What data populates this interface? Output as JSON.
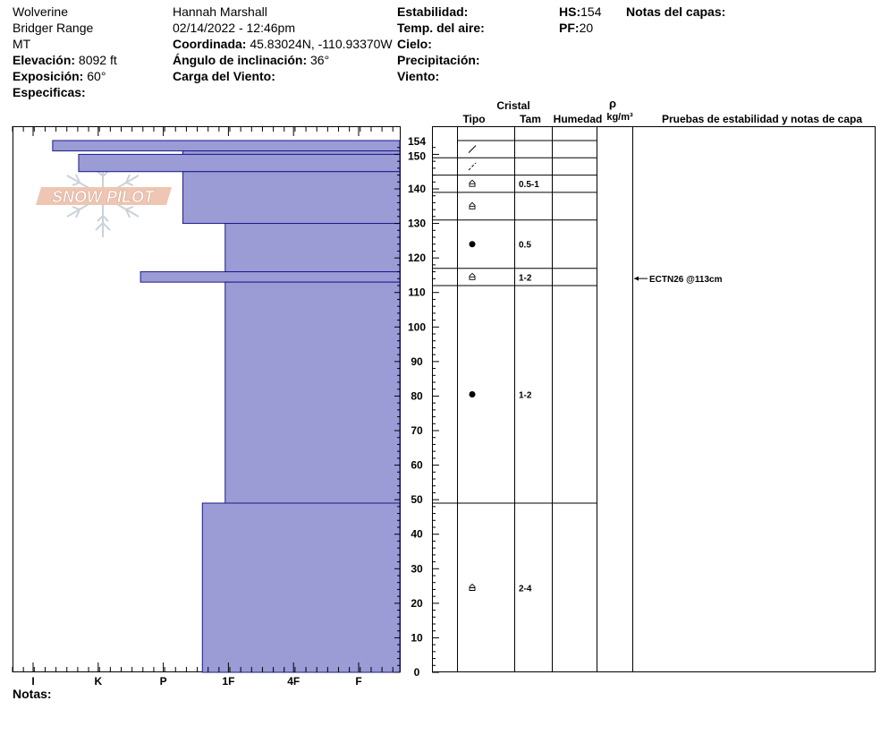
{
  "header": {
    "location": "Wolverine",
    "range": "Bridger Range",
    "state": "MT",
    "elevation_label": "Elevación:",
    "elevation_value": "8092 ft",
    "exposure_label": "Exposición:",
    "exposure_value": "60°",
    "specifics_label": "Especificas:",
    "observer": "Hannah Marshall",
    "datetime": "02/14/2022 - 12:46pm",
    "coord_label": "Coordinada:",
    "coord_value": "45.83024N, -110.93370W",
    "slope_label": "Ángulo de inclinación:",
    "slope_value": "36°",
    "wind_load_label": "Carga del Viento:",
    "stability_label": "Estabilidad:",
    "air_temp_label": "Temp. del aire:",
    "sky_label": "Cielo:",
    "precip_label": "Precipitación:",
    "wind_label": "Viento:",
    "hs_label": "HS:",
    "hs_value": "154",
    "pf_label": "PF:",
    "pf_value": "20",
    "layer_notes_label": "Notas del capas:",
    "notes_label": "Notas:"
  },
  "watermark": "SNOW PILOT",
  "columns": {
    "crystal": "Cristal",
    "type": "Tipo",
    "size": "Tam",
    "humidity": "Humedad",
    "rho": "ρ",
    "density_unit": "kg/m³",
    "tests": "Pruebas de estabilidad y notas de capa"
  },
  "colors": {
    "layer_fill": "#9b9bd6",
    "layer_stroke": "#1a1a8c"
  },
  "chart_data": {
    "type": "bar",
    "hardness_axis": [
      "I",
      "K",
      "P",
      "1F",
      "4F",
      "F"
    ],
    "depth_axis": {
      "min": 0,
      "max": 154,
      "labels": [
        0,
        10,
        20,
        30,
        40,
        50,
        60,
        70,
        80,
        90,
        100,
        110,
        120,
        130,
        140,
        150,
        154
      ]
    },
    "layers": [
      {
        "top": 154,
        "bottom": 151,
        "hardness": 0.3
      },
      {
        "top": 151,
        "bottom": 150,
        "hardness": 2.3
      },
      {
        "top": 150,
        "bottom": 145,
        "hardness": 0.7
      },
      {
        "top": 145,
        "bottom": 130,
        "hardness": 2.3
      },
      {
        "top": 130,
        "bottom": 116,
        "hardness": 2.95
      },
      {
        "top": 116,
        "bottom": 113,
        "hardness": 1.65
      },
      {
        "top": 113,
        "bottom": 49,
        "hardness": 2.95
      },
      {
        "top": 49,
        "bottom": 0,
        "hardness": 2.6
      }
    ],
    "crystal_rows": [
      {
        "top": 154,
        "bottom": 149,
        "symbol": "slash",
        "size": ""
      },
      {
        "top": 149,
        "bottom": 144,
        "symbol": "dashslash",
        "size": ""
      },
      {
        "top": 144,
        "bottom": 139,
        "symbol": "facet",
        "size": "0.5-1"
      },
      {
        "top": 139,
        "bottom": 131,
        "symbol": "facet",
        "size": ""
      },
      {
        "top": 131,
        "bottom": 117,
        "symbol": "dot",
        "size": "0.5"
      },
      {
        "top": 117,
        "bottom": 112,
        "symbol": "facet",
        "size": "1-2"
      },
      {
        "top": 112,
        "bottom": 49,
        "symbol": "dot",
        "size": "1-2"
      },
      {
        "top": 49,
        "bottom": 0,
        "symbol": "facet",
        "size": "2-4"
      }
    ],
    "stability_tests": [
      {
        "depth": 113,
        "label": "ECTN26 @113cm"
      }
    ]
  }
}
